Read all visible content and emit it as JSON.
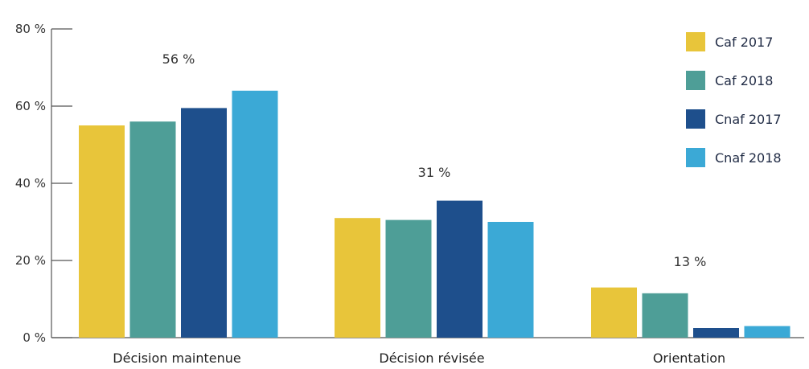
{
  "chart_data": {
    "type": "bar",
    "categories": [
      "Décision maintenue",
      "Décision révisée",
      "Orientation"
    ],
    "series": [
      {
        "name": "Caf 2017",
        "color": "#E8C53A",
        "values": [
          55,
          31,
          13
        ]
      },
      {
        "name": "Caf 2018",
        "color": "#4E9E97",
        "values": [
          56,
          30.5,
          11.5
        ]
      },
      {
        "name": "Cnaf 2017",
        "color": "#1E4F8C",
        "values": [
          59.5,
          35.5,
          2.5
        ]
      },
      {
        "name": "Cnaf 2018",
        "color": "#3BA9D6",
        "values": [
          64,
          30,
          3
        ]
      }
    ],
    "annotations": [
      "56 %",
      "31 %",
      "13 %"
    ],
    "ylim": [
      0,
      80
    ],
    "yticks": [
      0,
      20,
      40,
      60,
      80
    ],
    "ytick_labels": [
      "0 %",
      "20 %",
      "40 %",
      "60 %",
      "80 %"
    ],
    "legend_position": "top-right",
    "grid": false
  }
}
